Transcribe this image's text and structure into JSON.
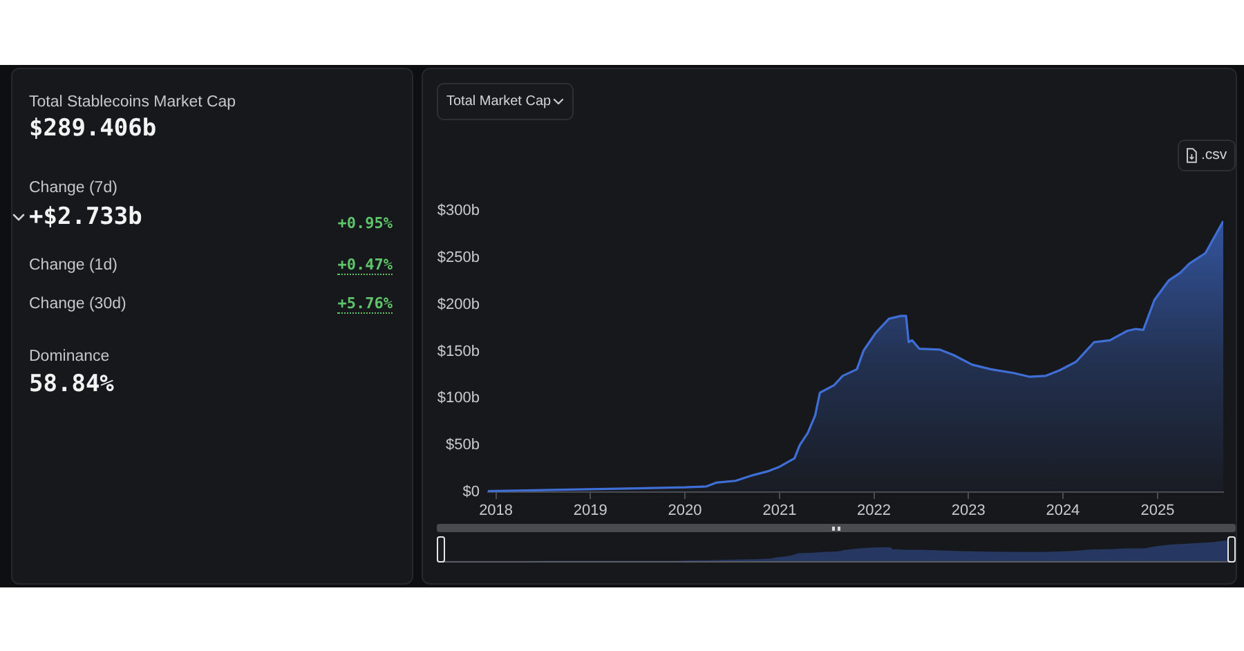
{
  "chart_data": [
    {
      "type": "other",
      "annotations": [
        "Total Stablecoins Market Cap",
        "$289.406b",
        "Change (7d)",
        "+$2.733b",
        "+0.95%",
        "Change (1d)",
        "+0.47%",
        "Change (30d)",
        "+5.76%",
        "Dominance",
        "58.84%"
      ]
    },
    {
      "type": "area",
      "annotations": [
        "Total Market Cap",
        ".csv"
      ],
      "color": "#3f6fd6",
      "x": [
        "2017-12-01",
        "2018-06-01",
        "2019-01-01",
        "2019-07-01",
        "2020-01-01",
        "2020-03-25",
        "2020-05-01",
        "2020-07-15",
        "2020-09-20",
        "2020-11-15",
        "2021-01-01",
        "2021-02-28",
        "2021-03-20",
        "2021-04-20",
        "2021-05-19",
        "2021-06-06",
        "2021-07-31",
        "2021-09-02",
        "2021-10-27",
        "2021-11-22",
        "2022-01-08",
        "2022-02-28",
        "2022-04-16",
        "2022-05-05",
        "2022-05-15",
        "2022-05-28",
        "2022-06-25",
        "2022-09-13",
        "2022-11-06",
        "2023-01-15",
        "2023-03-29",
        "2023-06-25",
        "2023-08-26",
        "2023-10-27",
        "2023-12-20",
        "2024-02-21",
        "2024-05-01",
        "2024-07-01",
        "2024-09-06",
        "2024-10-09",
        "2024-11-07",
        "2024-12-20",
        "2025-02-14",
        "2025-03-30",
        "2025-05-05",
        "2025-07-05",
        "2025-09-12"
      ],
      "values": [
        1,
        2,
        3,
        4,
        5,
        6,
        10,
        12,
        18,
        22,
        27,
        36,
        50,
        63,
        82,
        106,
        114,
        124,
        131,
        151,
        170,
        185,
        188,
        188,
        160,
        162,
        153,
        152,
        146,
        136,
        131,
        127,
        123,
        124,
        130,
        139,
        160,
        162,
        172,
        174,
        173,
        205,
        226,
        234,
        244,
        255,
        289
      ],
      "xlim": [
        "2017-12-01",
        "2025-09-12"
      ],
      "xticks": [
        "2018",
        "2019",
        "2020",
        "2021",
        "2022",
        "2023",
        "2024",
        "2025"
      ],
      "ylim": [
        0,
        300
      ],
      "yticks": [
        {
          "value": 0,
          "label": "$0"
        },
        {
          "value": 50,
          "label": "$50b"
        },
        {
          "value": 100,
          "label": "$100b"
        },
        {
          "value": 150,
          "label": "$150b"
        },
        {
          "value": 200,
          "label": "$200b"
        },
        {
          "value": 250,
          "label": "$250b"
        },
        {
          "value": 300,
          "label": "$300b"
        }
      ]
    }
  ]
}
